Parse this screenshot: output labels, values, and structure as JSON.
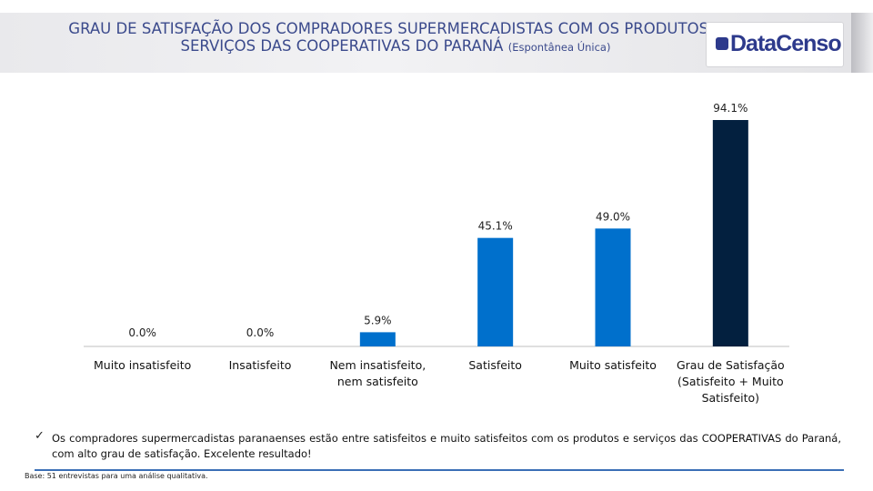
{
  "header": {
    "title_main": "GRAU DE SATISFAÇÃO DOS COMPRADORES SUPERMERCADISTAS COM OS PRODUTOS E SERVIÇOS DAS COOPERATIVAS DO PARANÁ",
    "title_suffix": "(Espontânea Única)",
    "logo_text": "DataCenso"
  },
  "chart_data": {
    "type": "bar",
    "title": "GRAU DE SATISFAÇÃO DOS COMPRADORES SUPERMERCADISTAS COM OS PRODUTOS E SERVIÇOS DAS COOPERATIVAS DO PARANÁ (Espontânea Única)",
    "categories": [
      [
        "Muito insatisfeito"
      ],
      [
        "Insatisfeito"
      ],
      [
        "Nem insatisfeito,",
        "nem satisfeito"
      ],
      [
        "Satisfeito"
      ],
      [
        "Muito satisfeito"
      ],
      [
        "Grau de Satisfação",
        "(Satisfeito + Muito",
        "Satisfeito)"
      ]
    ],
    "values": [
      0.0,
      0.0,
      5.9,
      45.1,
      49.0,
      94.1
    ],
    "value_labels": [
      "0.0%",
      "0.0%",
      "5.9%",
      "45.1%",
      "49.0%",
      "94.1%"
    ],
    "bar_colors": [
      "#0070cc",
      "#0070cc",
      "#0070cc",
      "#0070cc",
      "#0070cc",
      "#03203f"
    ],
    "ylim": [
      0,
      100
    ],
    "xlabel": "",
    "ylabel": ""
  },
  "note": {
    "check_icon": "✓",
    "text": "Os compradores supermercadistas paranaenses estão entre satisfeitos e muito satisfeitos com os produtos e serviços das COOPERATIVAS do Paraná, com alto grau de satisfação. Excelente resultado!"
  },
  "base_text": "Base: 51 entrevistas para uma análise qualitativa."
}
